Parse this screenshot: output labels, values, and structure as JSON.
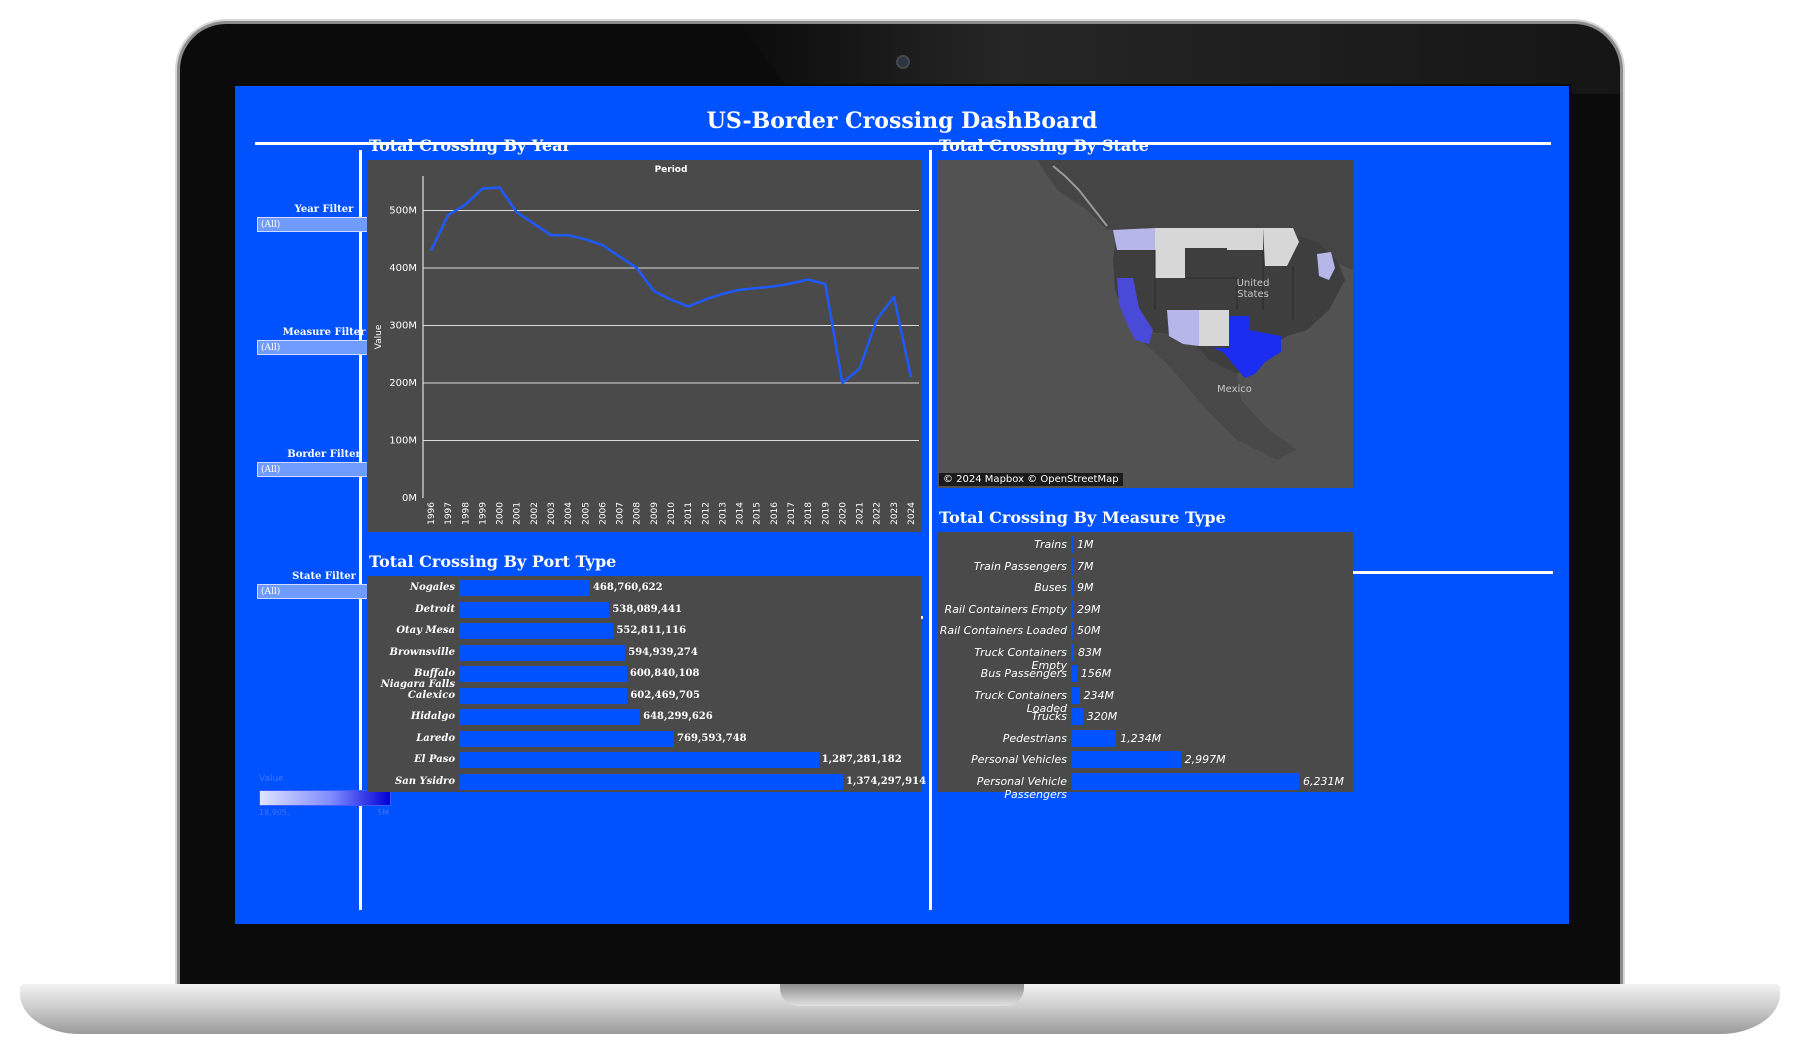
{
  "dashboard": {
    "title": "US-Border Crossing DashBoard"
  },
  "filters": [
    {
      "label": "Year Filter",
      "value": "(All)"
    },
    {
      "label": "Measure Filter",
      "value": "(All)"
    },
    {
      "label": "Border Filter",
      "value": "(All)"
    },
    {
      "label": "State Filter",
      "value": "(All)"
    }
  ],
  "legend": {
    "title": "Value",
    "min_label": "18,905,",
    "max_label": "5M",
    "colors": [
      "#dfe4ff",
      "#0000d6"
    ]
  },
  "panels": {
    "by_year": "Total Crossing By Year",
    "by_state": "Total Crossing By State",
    "by_port": "Total Crossing By Port Type",
    "by_measure": "Total Crossing By Measure Type"
  },
  "map": {
    "attribution": "© 2024 Mapbox © OpenStreetMap",
    "label_us": "United States",
    "label_mexico": "Mexico"
  },
  "colors": {
    "screen_bg": "#0052ff",
    "panel_bg": "#4a4a4a",
    "bar": "#0052ff",
    "line": "#1e5aff",
    "gridline": "#dcdcdc"
  },
  "chart_data": [
    {
      "type": "line",
      "title": "Period",
      "xlabel": "Period",
      "ylabel": "Value",
      "x": [
        "1996",
        "1997",
        "1998",
        "1999",
        "2000",
        "2001",
        "2002",
        "2003",
        "2004",
        "2005",
        "2006",
        "2007",
        "2008",
        "2009",
        "2010",
        "2011",
        "2012",
        "2013",
        "2014",
        "2015",
        "2016",
        "2017",
        "2018",
        "2019",
        "2020",
        "2021",
        "2022",
        "2023",
        "2024"
      ],
      "series": [
        {
          "values": [
            430,
            492,
            510,
            538,
            540,
            497,
            477,
            457,
            457,
            450,
            440,
            420,
            400,
            360,
            345,
            333,
            345,
            355,
            362,
            365,
            368,
            373,
            380,
            372,
            200,
            225,
            310,
            350,
            210
          ]
        }
      ],
      "y_unit": "M",
      "yticks": [
        "0M",
        "100M",
        "200M",
        "300M",
        "400M",
        "500M"
      ],
      "ylim": [
        0,
        560
      ],
      "grid": true
    },
    {
      "type": "bar",
      "orientation": "horizontal",
      "categories": [
        "Nogales",
        "Detroit",
        "Otay Mesa",
        "Brownsville",
        "Buffalo Niagara Falls",
        "Calexico",
        "Hidalgo",
        "Laredo",
        "El Paso",
        "San Ysidro"
      ],
      "values": [
        468760622,
        538089441,
        552811116,
        594939274,
        600840108,
        602469705,
        648299626,
        769593748,
        1287281182,
        1374297914
      ],
      "value_labels": [
        "468,760,622",
        "538,089,441",
        "552,811,116",
        "594,939,274",
        "600,840,108",
        "602,469,705",
        "648,299,626",
        "769,593,748",
        "1,287,281,182",
        "1,374,297,914"
      ]
    },
    {
      "type": "bar",
      "orientation": "horizontal",
      "categories": [
        "Trains",
        "Train Passengers",
        "Buses",
        "Rail Containers Empty",
        "Rail Containers Loaded",
        "Truck Containers Empty",
        "Bus Passengers",
        "Truck Containers Loaded",
        "Trucks",
        "Pedestrians",
        "Personal Vehicles",
        "Personal Vehicle Passengers"
      ],
      "values": [
        1,
        7,
        9,
        29,
        50,
        83,
        156,
        234,
        320,
        1234,
        2997,
        6231
      ],
      "value_labels": [
        "1M",
        "7M",
        "9M",
        "29M",
        "50M",
        "83M",
        "156M",
        "234M",
        "320M",
        "1,234M",
        "2,997M",
        "6,231M"
      ],
      "unit": "M"
    }
  ]
}
